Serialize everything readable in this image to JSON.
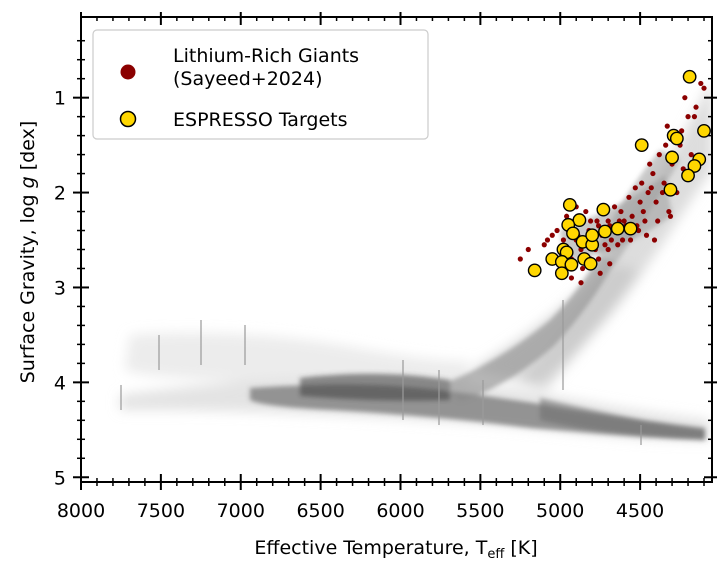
{
  "chart_data": {
    "type": "scatter",
    "xlabel": "Effective Temperature, T",
    "xlabel_sub": "eff",
    "xlabel_unit": " [K]",
    "ylabel_prefix": "Surface Gravity, log ",
    "ylabel_var": "g",
    "ylabel_unit": " [dex]",
    "xlim": [
      8000,
      4050
    ],
    "ylim": [
      5.05,
      0.15
    ],
    "x_inverted": true,
    "y_inverted": true,
    "xticks": [
      8000,
      7500,
      7000,
      6500,
      6000,
      5500,
      5000,
      4500
    ],
    "yticks": [
      1,
      2,
      3,
      4,
      5
    ],
    "legend_position": "top-left",
    "background_density": "grey 2D histogram of stars: main sequence band from ~7700 K / log g 4.2 to ~4300 K / log g 4.6, subgiant and red giant branch rising to ~4200 K / log g 1",
    "series": [
      {
        "name": "Lithium-Rich Giants\n(Sayeed+2024)",
        "color": "#8b0000",
        "x": [
          4820,
          4760,
          4900,
          4700,
          4650,
          4870,
          4800,
          4730,
          4680,
          4950,
          4600,
          4550,
          4880,
          4780,
          4720,
          4500,
          4620,
          4840,
          4910,
          4980,
          5050,
          4660,
          4590,
          4740,
          4810,
          4930,
          4860,
          4690,
          4570,
          4480,
          4450,
          4400,
          4350,
          4300,
          4420,
          4380,
          4520,
          4470,
          4250,
          4200,
          4280,
          4330,
          4150,
          4220,
          4100,
          4180,
          4360,
          4410,
          4610,
          4700,
          4950,
          5000,
          5100,
          5150,
          5200,
          5250,
          4900,
          4850,
          4760,
          4640,
          4560,
          4510,
          4460,
          4390,
          4320,
          4270,
          4770,
          4830,
          4890,
          4960,
          5020,
          5080,
          4990,
          4930,
          4870,
          4810,
          4750,
          4690,
          4630,
          4570,
          4530,
          4490,
          4440,
          4340,
          4240,
          4160,
          4120,
          4310,
          4230,
          4430
        ],
        "y": [
          2.4,
          2.35,
          2.5,
          2.3,
          2.4,
          2.6,
          2.45,
          2.2,
          2.5,
          2.4,
          2.3,
          2.25,
          2.3,
          2.6,
          2.55,
          2.1,
          2.2,
          2.2,
          2.3,
          2.5,
          2.45,
          2.15,
          2.35,
          2.45,
          2.3,
          2.7,
          2.8,
          2.35,
          2.4,
          2.2,
          2.0,
          2.1,
          1.9,
          1.7,
          1.8,
          1.6,
          2.35,
          2.3,
          1.5,
          1.2,
          1.4,
          1.3,
          1.1,
          1.0,
          0.9,
          1.6,
          2.0,
          2.5,
          2.5,
          2.6,
          2.65,
          2.6,
          2.55,
          2.8,
          2.6,
          2.7,
          2.15,
          2.5,
          2.7,
          2.55,
          2.5,
          2.4,
          2.45,
          2.3,
          2.2,
          2.0,
          2.3,
          2.55,
          2.45,
          2.25,
          2.4,
          2.5,
          2.85,
          2.9,
          2.95,
          2.7,
          2.85,
          2.75,
          2.3,
          2.05,
          1.95,
          1.9,
          1.7,
          1.5,
          1.35,
          1.2,
          0.85,
          2.25,
          1.75,
          1.95
        ]
      },
      {
        "name": "ESPRESSO Targets",
        "color": "#ffd700",
        "edgecolor": "#000000",
        "x": [
          4190,
          4290,
          4270,
          4100,
          4490,
          4300,
          4130,
          4160,
          4200,
          4310,
          4940,
          4730,
          4880,
          4950,
          4920,
          4860,
          4800,
          4980,
          4960,
          4640,
          4560,
          4720,
          4800,
          5160,
          5050,
          4990,
          4930,
          4850,
          4810,
          4990
        ],
        "y": [
          0.78,
          1.4,
          1.43,
          1.35,
          1.5,
          1.63,
          1.65,
          1.72,
          1.82,
          1.97,
          2.13,
          2.18,
          2.29,
          2.34,
          2.43,
          2.52,
          2.55,
          2.6,
          2.63,
          2.38,
          2.38,
          2.41,
          2.45,
          2.82,
          2.7,
          2.73,
          2.76,
          2.7,
          2.75,
          2.85
        ]
      }
    ]
  }
}
